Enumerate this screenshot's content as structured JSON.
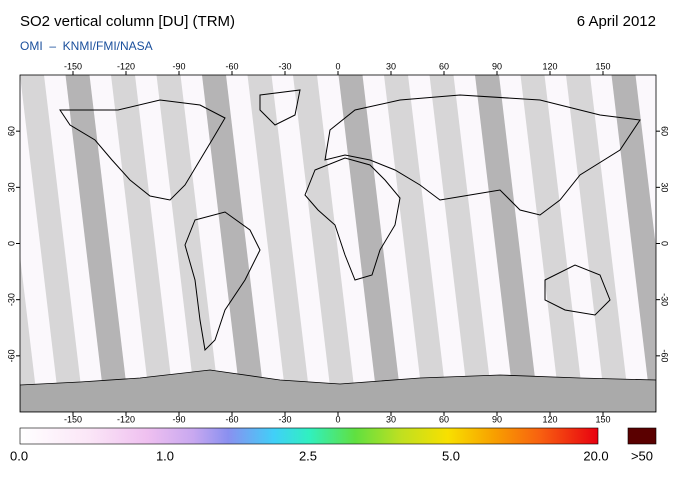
{
  "header": {
    "title": "SO2 vertical column [DU] (TRM)",
    "date": "6 April 2012",
    "source": "OMI  –  KNMI/FMI/NASA"
  },
  "map": {
    "xlim": [
      -180,
      180
    ],
    "ylim": [
      -90,
      90
    ],
    "xticks": [
      -150,
      -120,
      -90,
      -60,
      -30,
      0,
      30,
      60,
      90,
      120,
      150
    ],
    "yticks": [
      -60,
      -30,
      0,
      30,
      60
    ]
  },
  "colorbar": {
    "labels": [
      "0.0",
      "1.0",
      "2.5",
      "5.0",
      "20.0",
      ">50"
    ]
  }
}
